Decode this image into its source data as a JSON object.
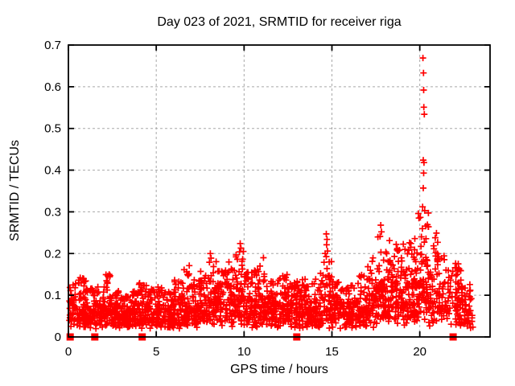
{
  "chart_data": {
    "type": "scatter",
    "title": "Day 023 of 2021, SRMTID for receiver riga",
    "xlabel": "GPS time / hours",
    "ylabel": "SRMTID / TECUs",
    "xlim": [
      0,
      24
    ],
    "ylim": [
      0,
      0.7
    ],
    "xticks": [
      [
        0,
        "0"
      ],
      [
        5,
        "5"
      ],
      [
        10,
        "10"
      ],
      [
        15,
        "15"
      ],
      [
        20,
        "20"
      ]
    ],
    "yticks": [
      [
        0,
        "0"
      ],
      [
        0.1,
        "0.1"
      ],
      [
        0.2,
        "0.2"
      ],
      [
        0.3,
        "0.3"
      ],
      [
        0.4,
        "0.4"
      ],
      [
        0.5,
        "0.5"
      ],
      [
        0.6,
        "0.6"
      ],
      [
        0.7,
        "0.7"
      ]
    ],
    "grid": true,
    "legend": "none",
    "marker": "plus",
    "colors": {
      "marker": "#ff0000",
      "grid": "#a8a8a8",
      "border": "#000000",
      "text": "#000000",
      "background": "#ffffff"
    },
    "seed": 20210123,
    "series": [
      {
        "name": "srmtid-scatter",
        "kind": "binned_scatter",
        "comment": "bins of [hour_start, hour_end, n_points, median_tecu, max_tecu]; noisy band estimated from pixels",
        "sigma": 0.5,
        "ymin": 0.02,
        "bins": [
          [
            0.05,
            0.5,
            40,
            0.075,
            0.13
          ],
          [
            0.5,
            1.0,
            52,
            0.07,
            0.145
          ],
          [
            1.0,
            1.5,
            52,
            0.065,
            0.12
          ],
          [
            1.5,
            2.0,
            52,
            0.06,
            0.12
          ],
          [
            2.0,
            2.5,
            52,
            0.065,
            0.15
          ],
          [
            2.5,
            3.0,
            52,
            0.06,
            0.11
          ],
          [
            3.0,
            3.5,
            52,
            0.055,
            0.1
          ],
          [
            3.5,
            4.0,
            52,
            0.06,
            0.11
          ],
          [
            4.0,
            4.5,
            52,
            0.06,
            0.13
          ],
          [
            4.5,
            5.0,
            52,
            0.06,
            0.115
          ],
          [
            5.0,
            5.5,
            52,
            0.065,
            0.12
          ],
          [
            5.5,
            6.0,
            52,
            0.06,
            0.12
          ],
          [
            6.0,
            6.5,
            52,
            0.065,
            0.14
          ],
          [
            6.5,
            7.0,
            52,
            0.07,
            0.17
          ],
          [
            7.0,
            7.5,
            52,
            0.07,
            0.14
          ],
          [
            7.5,
            8.0,
            52,
            0.075,
            0.16
          ],
          [
            8.0,
            8.5,
            52,
            0.08,
            0.195
          ],
          [
            8.5,
            9.0,
            52,
            0.08,
            0.16
          ],
          [
            9.0,
            9.5,
            52,
            0.085,
            0.18
          ],
          [
            9.5,
            10.0,
            58,
            0.1,
            0.215
          ],
          [
            10.0,
            10.5,
            52,
            0.08,
            0.16
          ],
          [
            10.5,
            11.0,
            52,
            0.075,
            0.17
          ],
          [
            11.0,
            11.5,
            52,
            0.08,
            0.185
          ],
          [
            11.5,
            12.0,
            52,
            0.07,
            0.14
          ],
          [
            12.0,
            12.5,
            52,
            0.07,
            0.15
          ],
          [
            12.5,
            13.0,
            52,
            0.065,
            0.13
          ],
          [
            13.0,
            13.5,
            52,
            0.07,
            0.14
          ],
          [
            13.5,
            14.0,
            52,
            0.065,
            0.13
          ],
          [
            14.0,
            14.5,
            52,
            0.07,
            0.16
          ],
          [
            14.5,
            15.0,
            52,
            0.08,
            0.21
          ],
          [
            15.0,
            15.5,
            52,
            0.07,
            0.14
          ],
          [
            15.5,
            16.0,
            46,
            0.06,
            0.12
          ],
          [
            16.0,
            16.5,
            46,
            0.06,
            0.13
          ],
          [
            16.5,
            17.0,
            52,
            0.07,
            0.15
          ],
          [
            17.0,
            17.5,
            52,
            0.085,
            0.2
          ],
          [
            17.5,
            18.0,
            55,
            0.1,
            0.245
          ],
          [
            18.0,
            18.5,
            55,
            0.1,
            0.23
          ],
          [
            18.5,
            19.0,
            55,
            0.095,
            0.21
          ],
          [
            19.0,
            19.5,
            55,
            0.1,
            0.225
          ],
          [
            19.5,
            20.0,
            55,
            0.11,
            0.27
          ],
          [
            20.0,
            20.5,
            60,
            0.13,
            0.3
          ],
          [
            20.5,
            21.0,
            40,
            0.1,
            0.22
          ],
          [
            21.0,
            21.5,
            40,
            0.11,
            0.2
          ],
          [
            21.5,
            22.0,
            24,
            0.09,
            0.16
          ],
          [
            22.0,
            22.35,
            46,
            0.09,
            0.18
          ],
          [
            22.35,
            23.05,
            52,
            0.07,
            0.13
          ]
        ]
      },
      {
        "name": "peak-points",
        "kind": "points",
        "comment": "individually visible high outliers [hour, TECU]",
        "points": [
          [
            20.18,
            0.669
          ],
          [
            20.21,
            0.633
          ],
          [
            20.22,
            0.592
          ],
          [
            20.23,
            0.551
          ],
          [
            20.26,
            0.534
          ],
          [
            20.2,
            0.424
          ],
          [
            20.24,
            0.418
          ],
          [
            20.22,
            0.393
          ],
          [
            20.2,
            0.357
          ],
          [
            20.16,
            0.312
          ],
          [
            20.28,
            0.303
          ],
          [
            19.92,
            0.296
          ],
          [
            19.95,
            0.285
          ],
          [
            17.78,
            0.268
          ],
          [
            17.82,
            0.252
          ],
          [
            17.74,
            0.241
          ],
          [
            18.28,
            0.231
          ],
          [
            18.66,
            0.222
          ],
          [
            18.72,
            0.212
          ],
          [
            19.42,
            0.226
          ],
          [
            19.48,
            0.215
          ],
          [
            14.68,
            0.247
          ],
          [
            14.72,
            0.234
          ],
          [
            14.7,
            0.221
          ],
          [
            9.78,
            0.224
          ],
          [
            9.82,
            0.213
          ],
          [
            9.74,
            0.204
          ],
          [
            20.95,
            0.249
          ],
          [
            20.88,
            0.238
          ],
          [
            21.02,
            0.227
          ],
          [
            8.08,
            0.2
          ],
          [
            8.12,
            0.189
          ],
          [
            11.1,
            0.19
          ],
          [
            6.88,
            0.171
          ],
          [
            2.32,
            0.15
          ],
          [
            22.08,
            0.166
          ],
          [
            22.12,
            0.15
          ]
        ]
      },
      {
        "name": "baseline-squares",
        "kind": "squares",
        "comment": "filled red squares sitting on y=0 axis",
        "x": [
          0.1,
          1.5,
          4.2,
          13.0,
          21.9
        ],
        "y": 0
      }
    ]
  }
}
